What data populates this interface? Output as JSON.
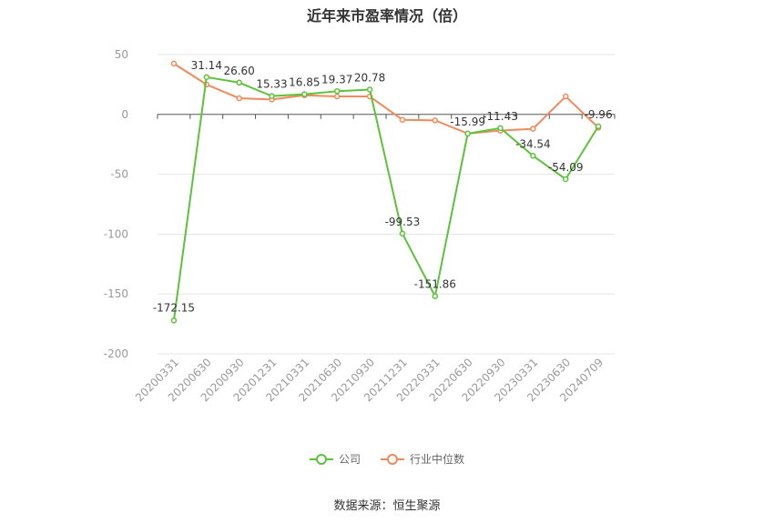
{
  "title": "近年来市盈率情况（倍）",
  "source": "数据来源：恒生聚源",
  "chart_data": {
    "type": "line",
    "title": "近年来市盈率情况（倍）",
    "categories": [
      "20200331",
      "20200630",
      "20200930",
      "20201231",
      "20210331",
      "20210630",
      "20210930",
      "20211231",
      "20220331",
      "20220630",
      "20220930",
      "20230331",
      "20230630",
      "20240709"
    ],
    "ylim": [
      -200,
      50
    ],
    "yticks": [
      50,
      0,
      -50,
      -100,
      -150,
      -200
    ],
    "grid": true,
    "legend_position": "bottom",
    "series": [
      {
        "name": "公司",
        "color": "#5cc23a",
        "values": [
          -172.15,
          31.14,
          26.6,
          15.33,
          16.85,
          19.37,
          20.78,
          -99.53,
          -151.86,
          -15.99,
          -11.43,
          -34.54,
          -54.09,
          -9.96
        ],
        "labels": [
          "-172.15",
          "31.14",
          "26.60",
          "15.33",
          "16.85",
          "19.37",
          "20.78",
          "-99.53",
          "-151.86",
          "-15.99",
          "-11.43",
          "-34.54",
          "-54.09",
          "-9.96"
        ]
      },
      {
        "name": "行业中位数",
        "color": "#f08a5a",
        "values": [
          42.5,
          25.0,
          13.5,
          12.5,
          16.0,
          15.0,
          15.0,
          -4.5,
          -5.0,
          -16.0,
          -13.5,
          -12.0,
          15.0,
          -11.0
        ]
      }
    ]
  }
}
